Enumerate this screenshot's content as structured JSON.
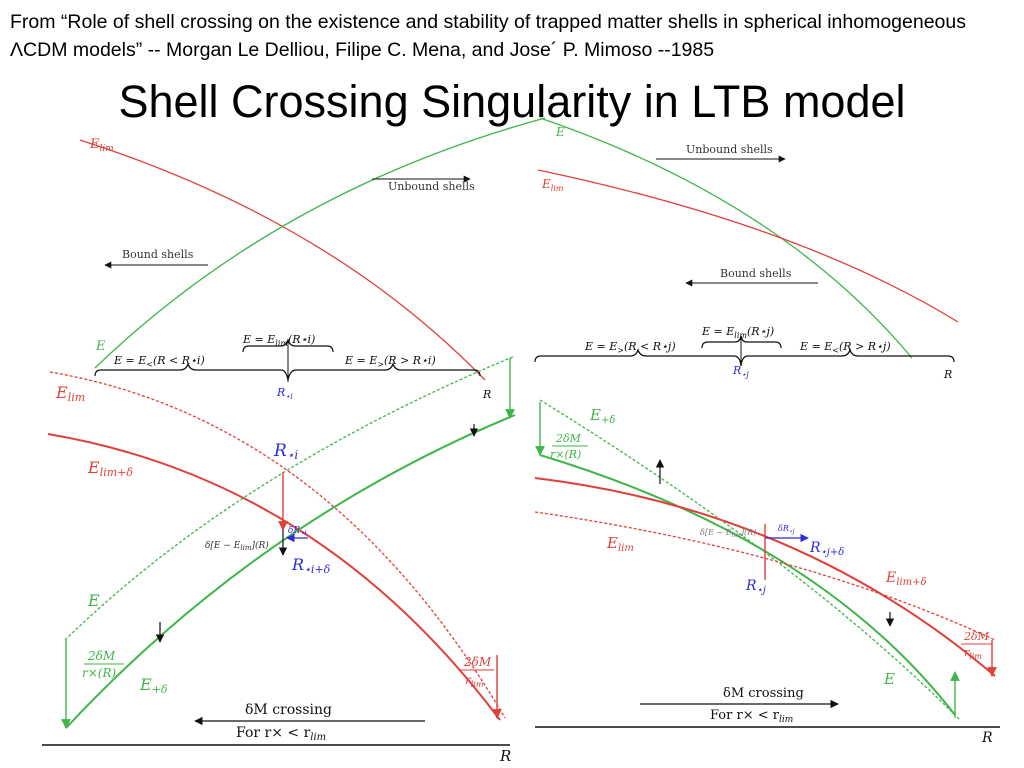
{
  "header": {
    "citation": "From “Role of shell crossing on the existence and stability of trapped matter shells in spherical inhomogeneous ΛCDM models” -- Morgan Le Delliou, Filipe C. Mena, and Jose´ P. Mimoso --1985",
    "title": "Shell Crossing Singularity in LTB model"
  },
  "colors": {
    "red": "#e0403a",
    "green": "#3fb54a",
    "blue": "#2c2cd8",
    "black": "#111111"
  },
  "top_left": {
    "e_lim": "E",
    "e_lim_sub": "lim",
    "e": "E",
    "unbound": "Unbound shells",
    "bound": "Bound shells",
    "brace_mid": "E = E",
    "brace_mid_sub": "lim",
    "brace_mid_arg": "(R⋆i)",
    "brace_left": "E = E",
    "brace_left_sub": "<",
    "brace_left_arg": "(R < R⋆i)",
    "brace_right": "E = E",
    "brace_right_sub": ">",
    "brace_right_arg": "(R > R⋆i)",
    "r_star": "R",
    "r_star_sub": "⋆i",
    "r_axis": "R"
  },
  "top_right": {
    "e": "E",
    "e_lim": "E",
    "e_lim_sub": "lim",
    "unbound": "Unbound shells",
    "bound": "Bound shells",
    "brace_mid": "E = E",
    "brace_mid_sub": "lim",
    "brace_mid_arg": "(R⋆j)",
    "brace_left": "E = E",
    "brace_left_sub": ">",
    "brace_left_arg": "(R < R⋆j)",
    "brace_right": "E = E",
    "brace_right_sub": "<",
    "brace_right_arg": "(R > R⋆j)",
    "r_star": "R",
    "r_star_sub": "⋆j",
    "r_axis": "R"
  },
  "bottom_left": {
    "e_lim": "E",
    "e_lim_sub": "lim",
    "e_lim_delta": "E",
    "e_lim_delta_sub": "lim+δ",
    "r_star": "R",
    "r_star_sub": "⋆i",
    "delta_r": "δR",
    "delta_r_sub": "⋆i",
    "delta_e": "δ[E − E",
    "delta_e_sub": "lim",
    "delta_e_end": "](R)",
    "r_star_delta": "R",
    "r_star_delta_sub": "⋆i+δ",
    "e": "E",
    "frac_num": "2δM",
    "frac_den": "r×(R)",
    "e_delta": "E",
    "e_delta_sub": "+δ",
    "frac2_num": "2δM",
    "frac2_den": "r",
    "frac2_den_sub": "lim",
    "crossing": "δM crossing",
    "for_text": "For r× < r",
    "for_sub": "lim",
    "r_axis": "R"
  },
  "bottom_right": {
    "e_delta": "E",
    "e_delta_sub": "+δ",
    "frac_num": "2δM",
    "frac_den": "r×(R)",
    "delta_e": "δ[E − E",
    "delta_e_sub": "lim",
    "delta_e_end": "](R)",
    "delta_r": "δR",
    "delta_r_sub": "⋆j",
    "r_star_delta": "R",
    "r_star_delta_sub": "⋆j+δ",
    "e_lim": "E",
    "e_lim_sub": "lim",
    "r_star": "R",
    "r_star_sub": "⋆j",
    "e_lim_delta": "E",
    "e_lim_delta_sub": "lim+δ",
    "frac2_num": "2δM",
    "frac2_den": "r",
    "frac2_den_sub": "lim",
    "e": "E",
    "crossing": "δM crossing",
    "for_text": "For r× < r",
    "for_sub": "lim",
    "r_axis": "R"
  }
}
